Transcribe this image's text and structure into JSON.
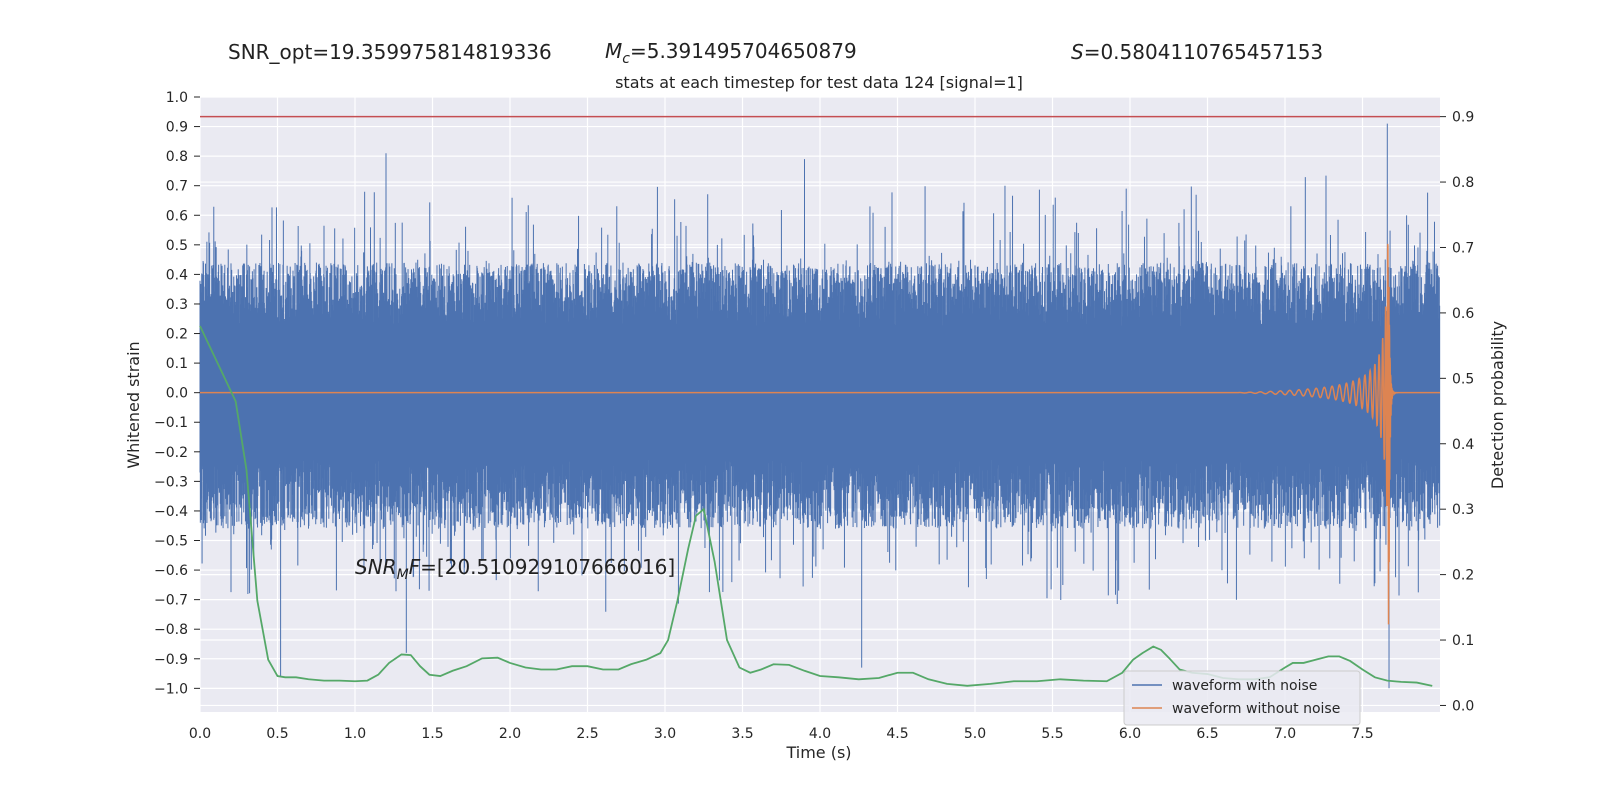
{
  "header": {
    "snr_opt": "SNR_opt=19.359975814819336",
    "mc_symbol": "M",
    "mc_sub": "c",
    "mc_value": "=5.391495704650879",
    "s_symbol": "S",
    "s_value": "=0.5804110765457153"
  },
  "annotation": {
    "snr_symbol": "SNR",
    "snr_sub": "M",
    "snr_tail": "F",
    "snr_value": "=[20.510929107666016]"
  },
  "colors": {
    "background": "#eaeaf2",
    "noise": "#4c72b0",
    "clean": "#dd8452",
    "probability": "#55a868",
    "threshold": "#c44e52"
  },
  "chart_data": {
    "type": "line",
    "title": "stats at each timestep for test data 124 [signal=1]",
    "xlabel": "Time (s)",
    "ylabel": "Whitened strain",
    "y2label": "Detection probability",
    "xlim": [
      0,
      8.0
    ],
    "ylim": [
      -1.08,
      1.0
    ],
    "y2lim": [
      -0.01,
      0.93
    ],
    "grid": true,
    "legend_position": "lower-right",
    "xticks": [
      "0.0",
      "0.5",
      "1.0",
      "1.5",
      "2.0",
      "2.5",
      "3.0",
      "3.5",
      "4.0",
      "4.5",
      "5.0",
      "5.5",
      "6.0",
      "6.5",
      "7.0",
      "7.5"
    ],
    "yticks": [
      "1.0",
      "0.9",
      "0.8",
      "0.7",
      "0.6",
      "0.5",
      "0.4",
      "0.3",
      "0.2",
      "0.1",
      "0.0",
      "−0.1",
      "−0.2",
      "−0.3",
      "−0.4",
      "−0.5",
      "−0.6",
      "−0.7",
      "−0.8",
      "−0.9",
      "−1.0"
    ],
    "y2ticks": [
      "0.9",
      "0.8",
      "0.7",
      "0.6",
      "0.5",
      "0.4",
      "0.3",
      "0.2",
      "0.1",
      "0.0"
    ],
    "threshold": 0.9,
    "series": [
      {
        "name": "waveform with noise",
        "axis": "left",
        "description_values": "whitened strain noise, mostly within ±0.2 with spikes up to ~0.8",
        "peaks": [
          {
            "x": 0.52,
            "y": -0.96
          },
          {
            "x": 1.2,
            "y": 0.81
          },
          {
            "x": 1.33,
            "y": -0.88
          },
          {
            "x": 3.9,
            "y": 0.79
          },
          {
            "x": 4.27,
            "y": -0.93
          },
          {
            "x": 7.66,
            "y": 0.91
          },
          {
            "x": 7.67,
            "y": -1.0
          }
        ]
      },
      {
        "name": "waveform without noise",
        "axis": "left",
        "chirp": {
          "t_merge": 7.67,
          "amp_end": 0.9,
          "cycles": 115
        }
      },
      {
        "name": "",
        "axis": "right",
        "x": [
          0.0,
          0.12,
          0.23,
          0.3,
          0.37,
          0.44,
          0.5,
          0.55,
          0.62,
          0.7,
          0.8,
          0.9,
          1.0,
          1.08,
          1.15,
          1.22,
          1.3,
          1.36,
          1.42,
          1.48,
          1.55,
          1.63,
          1.72,
          1.82,
          1.92,
          2.0,
          2.1,
          2.2,
          2.3,
          2.4,
          2.5,
          2.6,
          2.7,
          2.78,
          2.88,
          2.97,
          3.02,
          3.08,
          3.15,
          3.2,
          3.25,
          3.32,
          3.4,
          3.48,
          3.55,
          3.62,
          3.7,
          3.8,
          3.9,
          4.0,
          4.12,
          4.25,
          4.38,
          4.5,
          4.6,
          4.7,
          4.82,
          4.95,
          5.1,
          5.25,
          5.4,
          5.55,
          5.7,
          5.85,
          5.95,
          6.02,
          6.08,
          6.15,
          6.2,
          6.25,
          6.32,
          6.4,
          6.5,
          6.6,
          6.7,
          6.8,
          6.9,
          7.0,
          7.05,
          7.12,
          7.2,
          7.28,
          7.35,
          7.42,
          7.5,
          7.58,
          7.66,
          7.75,
          7.85,
          7.95
        ],
        "values": [
          0.58,
          0.52,
          0.465,
          0.36,
          0.16,
          0.07,
          0.045,
          0.043,
          0.043,
          0.04,
          0.038,
          0.038,
          0.037,
          0.038,
          0.047,
          0.065,
          0.078,
          0.077,
          0.06,
          0.047,
          0.045,
          0.053,
          0.06,
          0.072,
          0.073,
          0.065,
          0.058,
          0.055,
          0.055,
          0.06,
          0.06,
          0.055,
          0.055,
          0.063,
          0.07,
          0.08,
          0.1,
          0.16,
          0.24,
          0.29,
          0.3,
          0.22,
          0.1,
          0.058,
          0.05,
          0.055,
          0.063,
          0.062,
          0.053,
          0.045,
          0.043,
          0.04,
          0.042,
          0.05,
          0.05,
          0.04,
          0.033,
          0.03,
          0.033,
          0.037,
          0.037,
          0.04,
          0.038,
          0.037,
          0.05,
          0.07,
          0.08,
          0.09,
          0.085,
          0.073,
          0.055,
          0.05,
          0.048,
          0.042,
          0.04,
          0.04,
          0.043,
          0.058,
          0.065,
          0.065,
          0.07,
          0.075,
          0.075,
          0.068,
          0.055,
          0.043,
          0.038,
          0.036,
          0.035,
          0.03
        ]
      }
    ]
  }
}
